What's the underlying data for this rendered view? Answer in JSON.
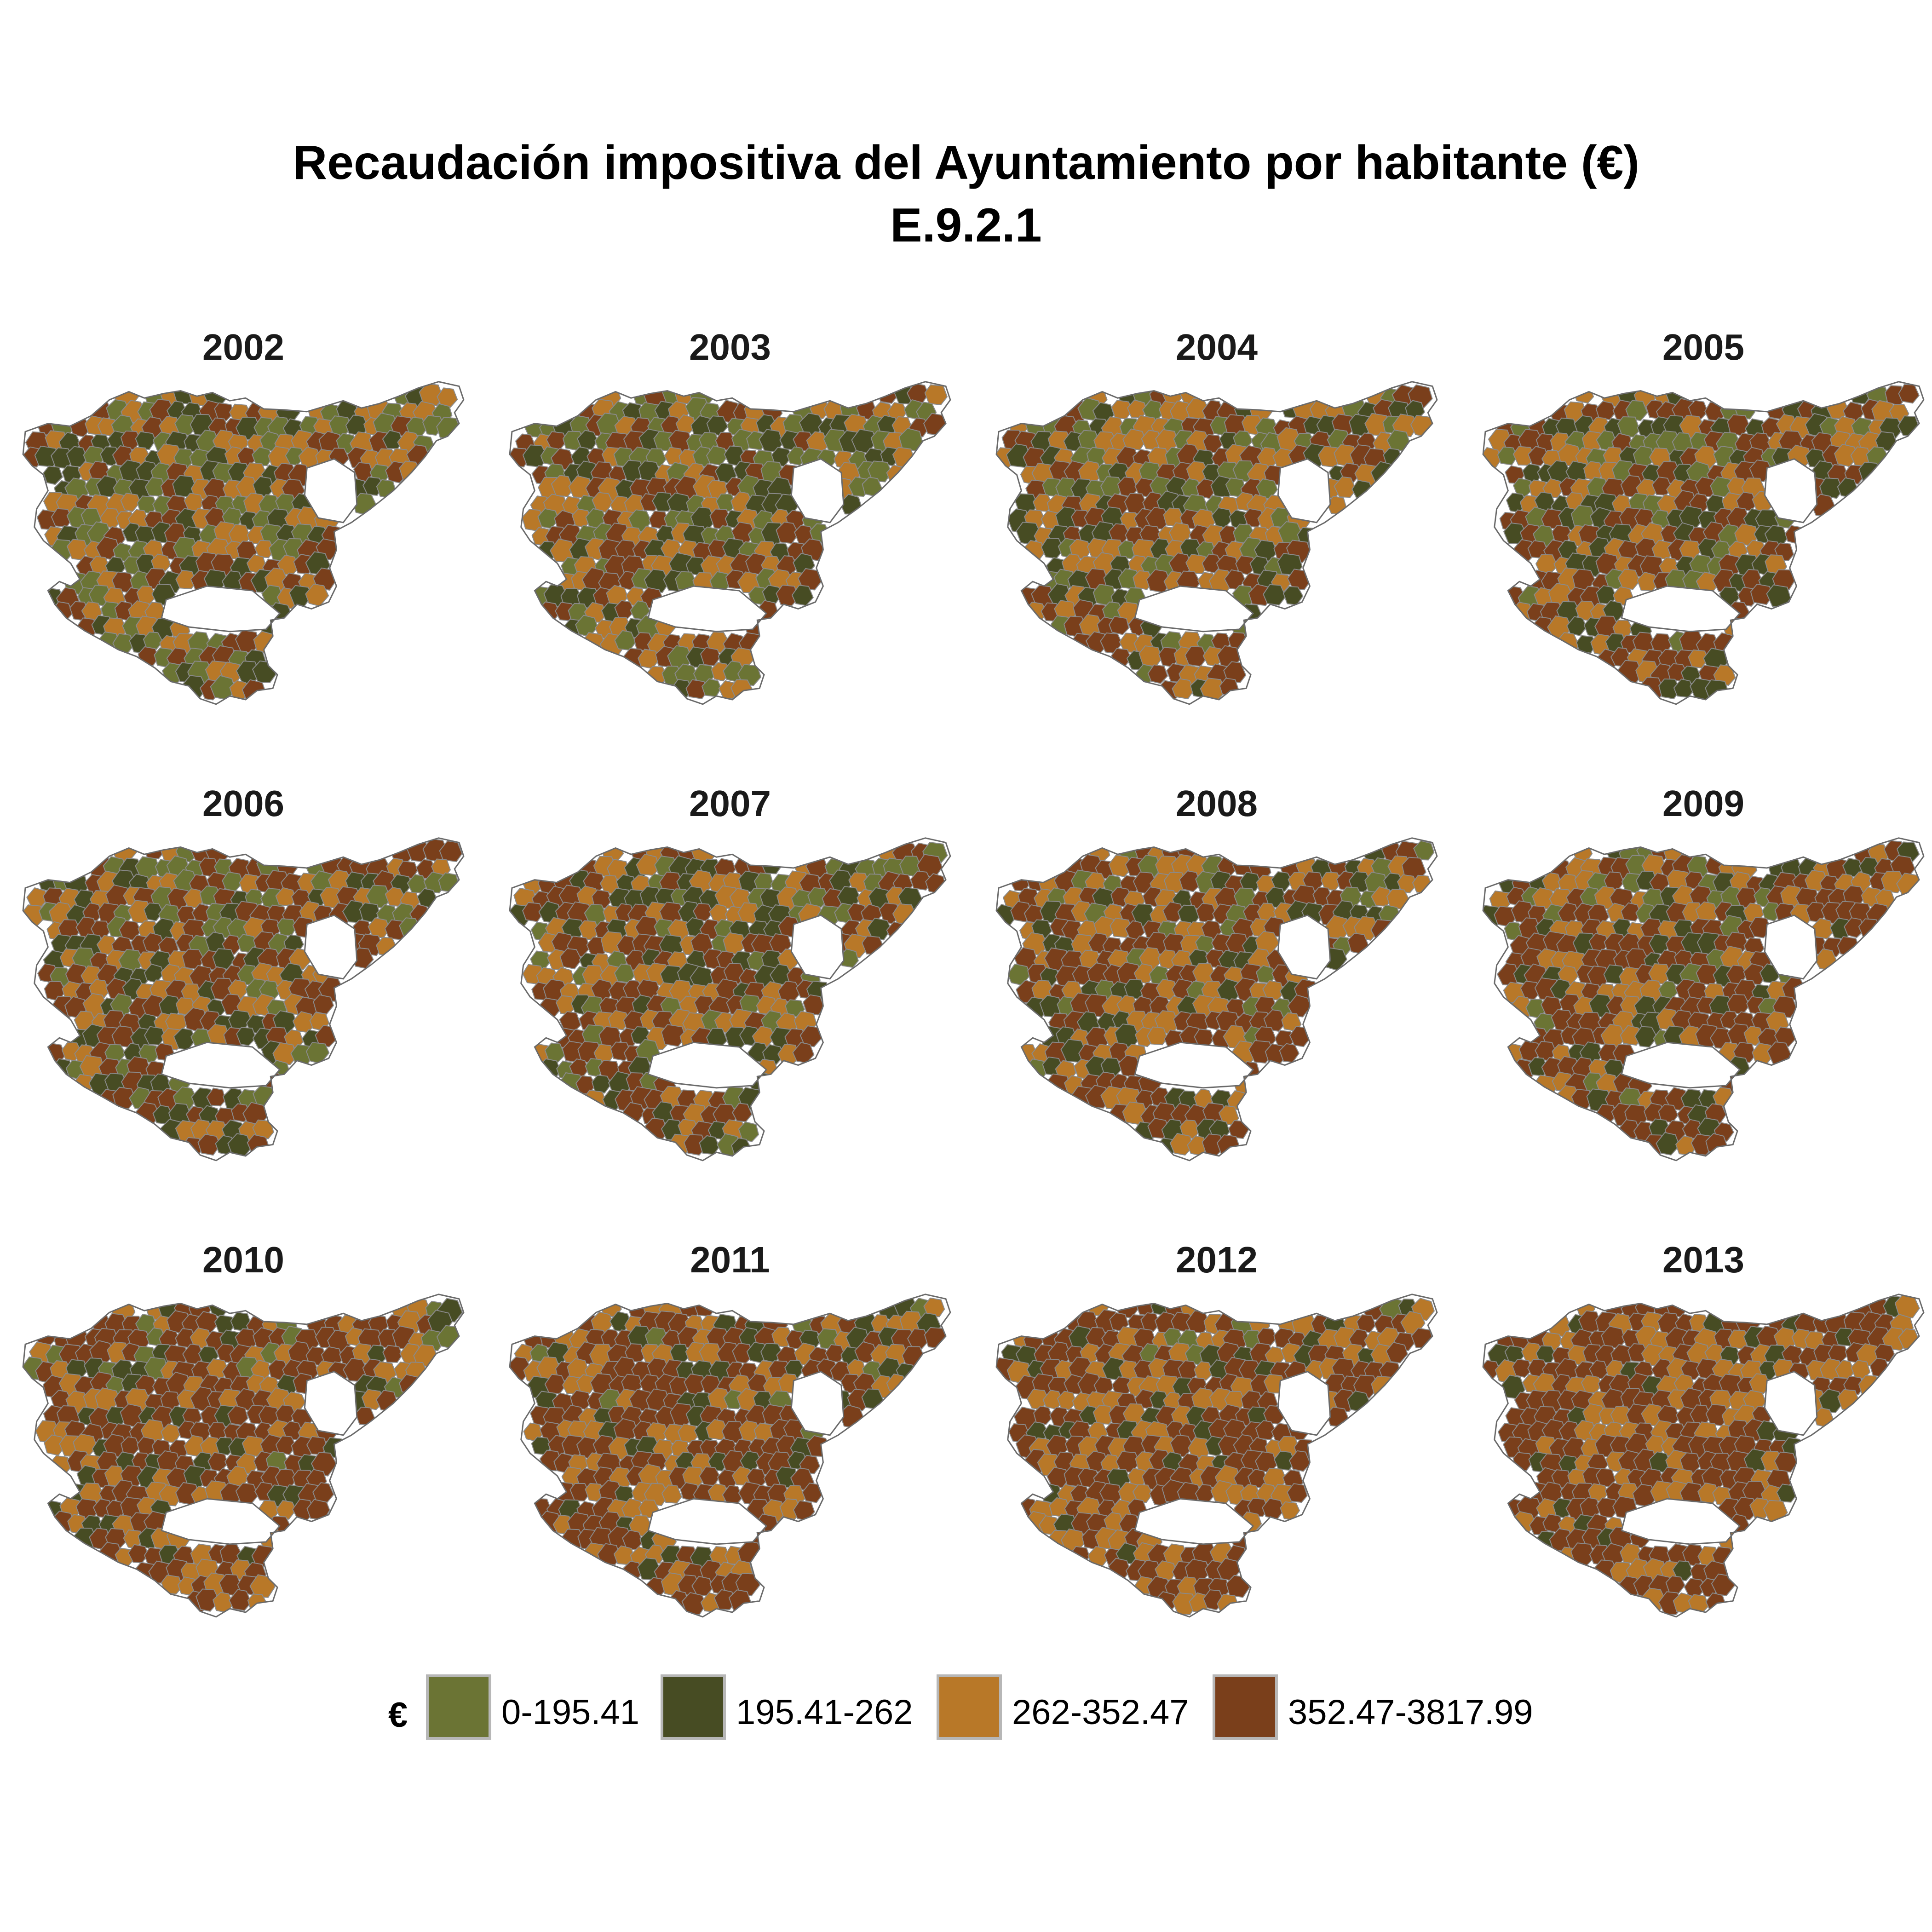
{
  "title": {
    "line1": "Recaudación impositiva del Ayuntamiento por habitante (€)",
    "line2": "E.9.2.1"
  },
  "colors": {
    "class1": "#6b7434",
    "class2": "#474c23",
    "class3": "#b87828",
    "class4": "#7a3f1b",
    "border": "#8a8a8a"
  },
  "legend": {
    "title": "€",
    "items": [
      {
        "label": "0-195.41",
        "color": "#6b7434"
      },
      {
        "label": "195.41-262",
        "color": "#474c23"
      },
      {
        "label": "262-352.47",
        "color": "#b87828"
      },
      {
        "label": "352.47-3817.99",
        "color": "#7a3f1b"
      }
    ]
  },
  "panels": [
    {
      "year": "2002"
    },
    {
      "year": "2003"
    },
    {
      "year": "2004"
    },
    {
      "year": "2005"
    },
    {
      "year": "2006"
    },
    {
      "year": "2007"
    },
    {
      "year": "2008"
    },
    {
      "year": "2009"
    },
    {
      "year": "2010"
    },
    {
      "year": "2011"
    },
    {
      "year": "2012"
    },
    {
      "year": "2013"
    }
  ]
}
